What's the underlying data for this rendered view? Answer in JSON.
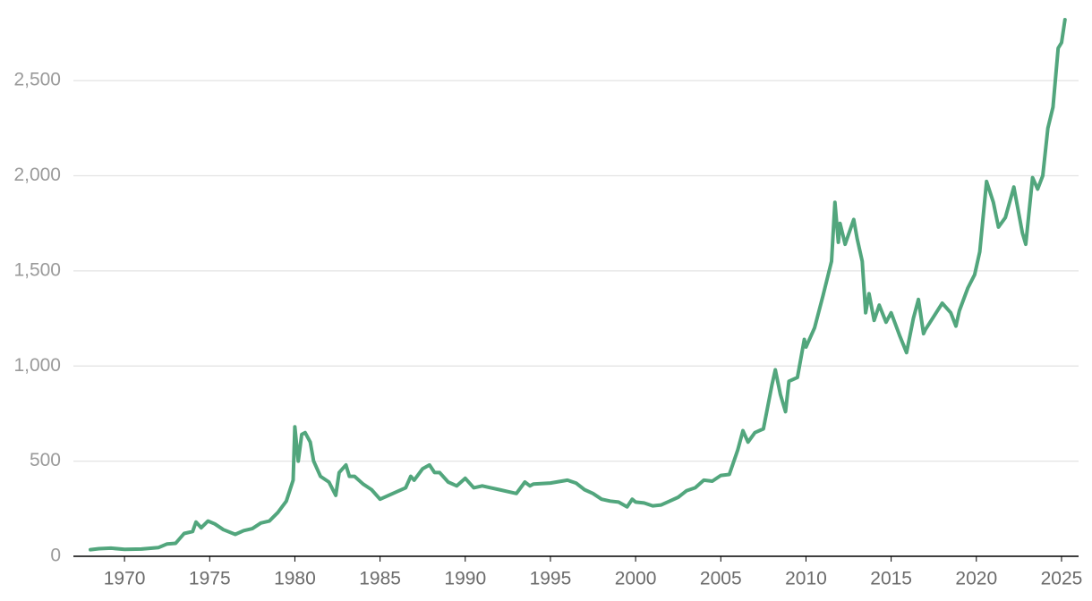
{
  "chart_data": {
    "type": "line",
    "x": [
      1968.0,
      1968.5,
      1969.2,
      1970.0,
      1971.0,
      1972.0,
      1972.5,
      1973.0,
      1973.5,
      1974.0,
      1974.2,
      1974.5,
      1974.9,
      1975.3,
      1975.8,
      1976.5,
      1977.0,
      1977.5,
      1978.0,
      1978.5,
      1979.0,
      1979.5,
      1979.9,
      1980.0,
      1980.2,
      1980.4,
      1980.6,
      1980.9,
      1981.1,
      1981.5,
      1982.0,
      1982.4,
      1982.6,
      1983.0,
      1983.2,
      1983.5,
      1984.0,
      1984.5,
      1985.0,
      1985.5,
      1986.0,
      1986.5,
      1986.8,
      1987.0,
      1987.5,
      1987.9,
      1988.2,
      1988.5,
      1989.0,
      1989.5,
      1990.0,
      1990.5,
      1991.0,
      1991.5,
      1992.0,
      1992.5,
      1993.0,
      1993.5,
      1993.8,
      1994.0,
      1995.0,
      1996.0,
      1996.5,
      1997.0,
      1997.5,
      1998.0,
      1998.5,
      1999.0,
      1999.5,
      1999.8,
      2000.0,
      2000.5,
      2001.0,
      2001.5,
      2002.0,
      2002.5,
      2003.0,
      2003.5,
      2004.0,
      2004.5,
      2005.0,
      2005.5,
      2006.0,
      2006.3,
      2006.6,
      2007.0,
      2007.5,
      2008.0,
      2008.2,
      2008.5,
      2008.8,
      2009.0,
      2009.5,
      2009.9,
      2010.0,
      2010.5,
      2011.0,
      2011.5,
      2011.7,
      2011.9,
      2012.0,
      2012.3,
      2012.8,
      2013.0,
      2013.3,
      2013.5,
      2013.7,
      2014.0,
      2014.3,
      2014.7,
      2015.0,
      2015.5,
      2015.9,
      2016.3,
      2016.6,
      2016.9,
      2017.0,
      2017.5,
      2018.0,
      2018.5,
      2018.8,
      2019.0,
      2019.5,
      2019.9,
      2020.2,
      2020.6,
      2021.0,
      2021.3,
      2021.7,
      2022.2,
      2022.7,
      2022.9,
      2023.3,
      2023.6,
      2023.9,
      2024.2,
      2024.5,
      2024.8,
      2025.0,
      2025.2
    ],
    "values": [
      35,
      40,
      43,
      36,
      38,
      46,
      65,
      68,
      120,
      130,
      180,
      150,
      185,
      170,
      140,
      115,
      135,
      145,
      175,
      185,
      230,
      290,
      400,
      680,
      500,
      640,
      650,
      600,
      500,
      420,
      390,
      320,
      440,
      480,
      420,
      420,
      380,
      350,
      300,
      320,
      340,
      360,
      420,
      400,
      460,
      480,
      440,
      440,
      390,
      370,
      410,
      360,
      370,
      360,
      350,
      340,
      330,
      390,
      370,
      380,
      385,
      400,
      385,
      350,
      330,
      300,
      290,
      285,
      260,
      300,
      285,
      280,
      265,
      270,
      290,
      310,
      345,
      360,
      400,
      395,
      425,
      430,
      560,
      660,
      600,
      650,
      670,
      900,
      980,
      850,
      760,
      920,
      940,
      1140,
      1100,
      1200,
      1370,
      1550,
      1860,
      1650,
      1750,
      1640,
      1770,
      1670,
      1550,
      1280,
      1380,
      1240,
      1320,
      1230,
      1280,
      1160,
      1070,
      1250,
      1350,
      1170,
      1190,
      1260,
      1330,
      1280,
      1210,
      1290,
      1410,
      1480,
      1600,
      1970,
      1860,
      1730,
      1780,
      1940,
      1700,
      1640,
      1990,
      1930,
      2000,
      2250,
      2360,
      2670,
      2700,
      2820
    ],
    "color": "#52a67d",
    "xlim": [
      1967,
      2026
    ],
    "xticks": [
      1970,
      1975,
      1980,
      1985,
      1990,
      1995,
      2000,
      2005,
      2010,
      2015,
      2020,
      2025
    ],
    "ylim": [
      0,
      2900
    ],
    "yticks": [
      0,
      500,
      {
        "value": 1000,
        "label": "1,000"
      },
      {
        "value": 1500,
        "label": "1,500"
      },
      {
        "value": 2000,
        "label": "2,000"
      },
      {
        "value": 2500,
        "label": "2,500"
      }
    ],
    "grid": true
  }
}
